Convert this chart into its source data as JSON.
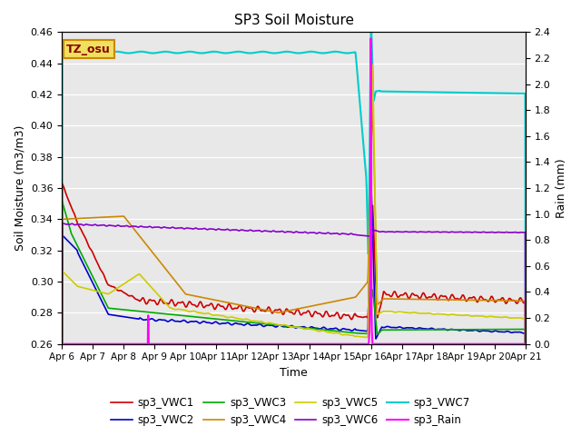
{
  "title": "SP3 Soil Moisture",
  "xlabel": "Time",
  "ylabel_left": "Soil Moisture (m3/m3)",
  "ylabel_right": "Rain (mm)",
  "ylim_left": [
    0.26,
    0.46
  ],
  "ylim_right": [
    0.0,
    2.4
  ],
  "plot_bg_color": "#e8e8e8",
  "annotation_text": "TZ_osu",
  "annotation_bg": "#f0e060",
  "annotation_border": "#cc8800",
  "series_colors": {
    "sp3_VWC1": "#cc0000",
    "sp3_VWC2": "#0000cc",
    "sp3_VWC3": "#00aa00",
    "sp3_VWC4": "#cc8800",
    "sp3_VWC5": "#cccc00",
    "sp3_VWC6": "#8800cc",
    "sp3_VWC7": "#00cccc",
    "sp3_Rain": "#ff00ff"
  },
  "legend_order": [
    "sp3_VWC1",
    "sp3_VWC2",
    "sp3_VWC3",
    "sp3_VWC4",
    "sp3_VWC5",
    "sp3_VWC6",
    "sp3_VWC7",
    "sp3_Rain"
  ]
}
